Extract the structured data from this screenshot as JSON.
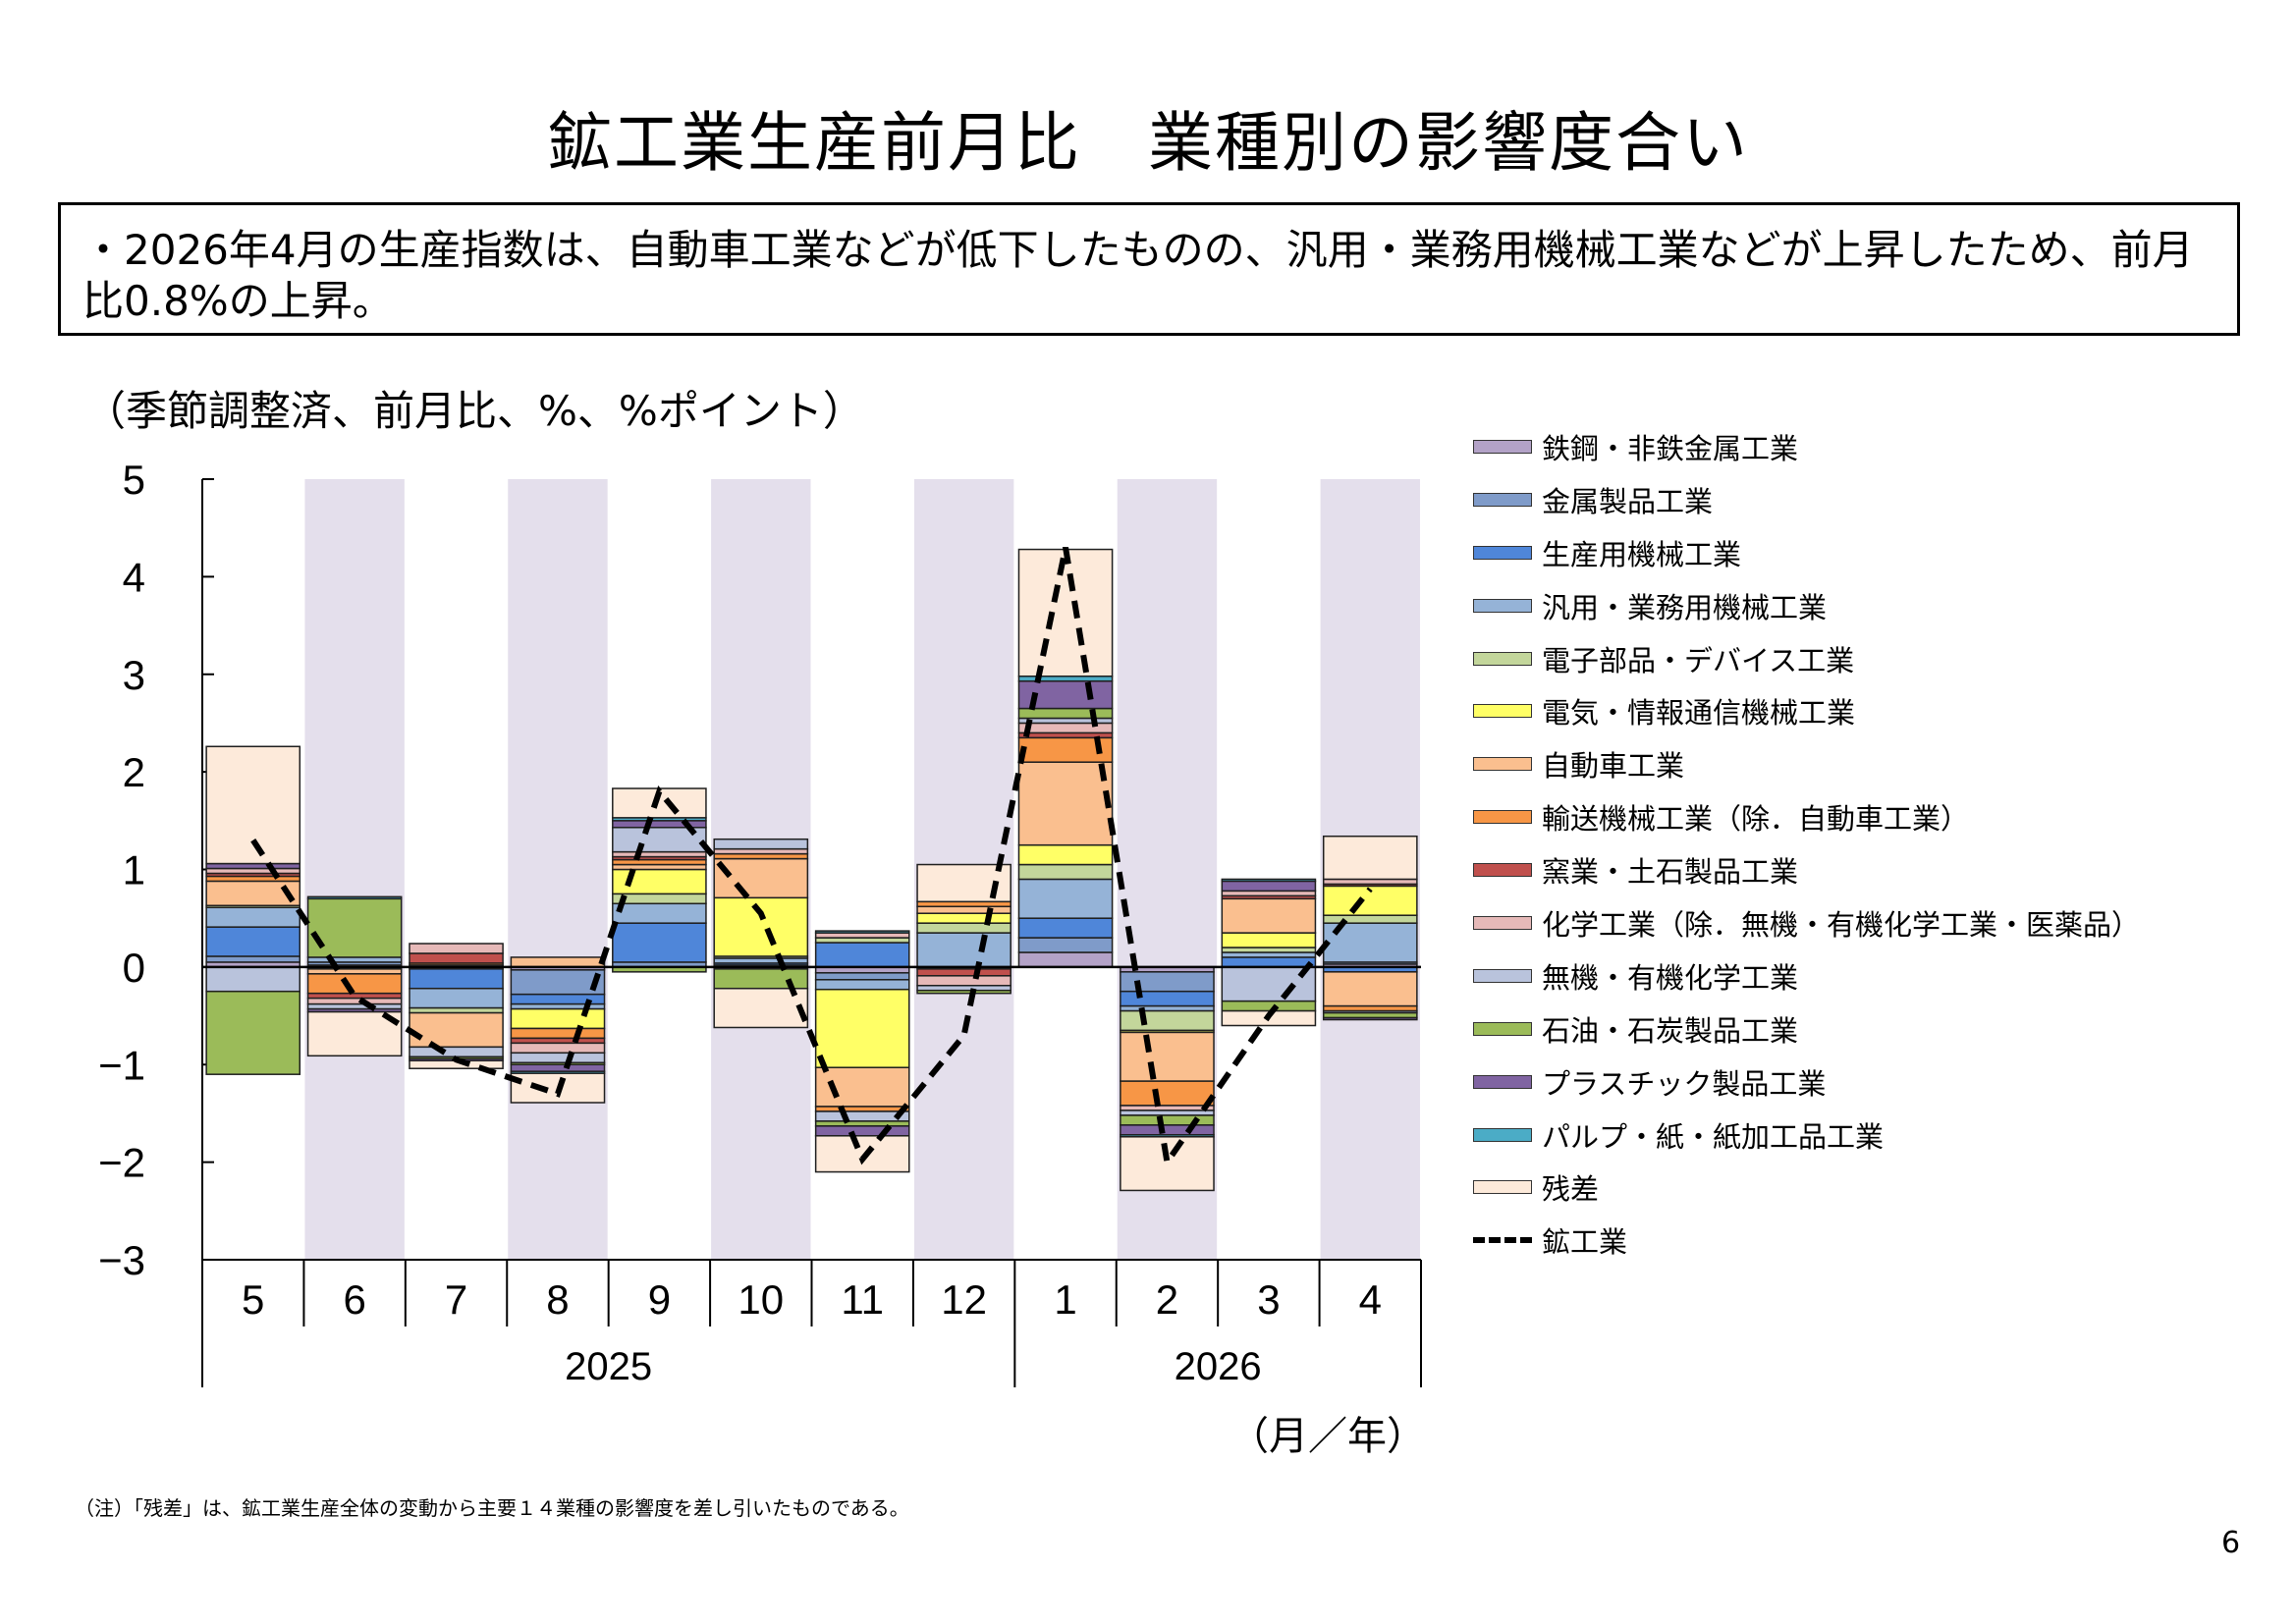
{
  "page": {
    "title": "鉱工業生産前月比　業種別の影響度合い",
    "summary": "・2026年4月の生産指数は、自動車工業などが低下したものの、汎用・業務用機械工業などが上昇したため、前月比0.8%の上昇。",
    "unit_label": "（季節調整済、前月比、%、%ポイント）",
    "x_unit": "（月／年）",
    "note": "（注）「残差」は、鉱工業生産全体の変動から主要１４業種の影響度を差し引いたものである。",
    "page_number": "6"
  },
  "chart_data": {
    "type": "bar",
    "stacked": true,
    "categories": [
      "5",
      "6",
      "7",
      "8",
      "9",
      "10",
      "11",
      "12",
      "1",
      "2",
      "3",
      "4"
    ],
    "year_groups": [
      {
        "label": "2025",
        "months": 8
      },
      {
        "label": "2026",
        "months": 4
      }
    ],
    "ylim": [
      -3,
      5
    ],
    "yticks": [
      "5",
      "4",
      "3",
      "2",
      "1",
      "0",
      "−1",
      "−2",
      "−3"
    ],
    "series": [
      {
        "name": "鉄鋼・非鉄金属工業",
        "color": "#B3A2C7",
        "values": [
          0.05,
          0.02,
          0.02,
          -0.03,
          0.0,
          -0.02,
          -0.06,
          0.0,
          0.15,
          -0.05,
          0.0,
          0.03
        ]
      },
      {
        "name": "金属製品工業",
        "color": "#7F9BC9",
        "values": [
          0.06,
          0.03,
          -0.02,
          -0.25,
          0.05,
          0.02,
          -0.07,
          -0.02,
          0.15,
          -0.2,
          0.0,
          0.02
        ]
      },
      {
        "name": "生産用機械工業",
        "color": "#4F86D9",
        "values": [
          0.3,
          -0.02,
          -0.2,
          -0.1,
          0.4,
          0.02,
          0.25,
          0.0,
          0.2,
          -0.15,
          0.1,
          -0.05
        ]
      },
      {
        "name": "汎用・業務用機械工業",
        "color": "#95B3D7",
        "values": [
          0.2,
          0.05,
          -0.2,
          -0.05,
          0.2,
          0.05,
          -0.1,
          0.35,
          0.4,
          -0.05,
          0.05,
          0.4
        ]
      },
      {
        "name": "電子部品・デバイス工業",
        "color": "#C3D69B",
        "values": [
          0.02,
          0.0,
          -0.05,
          0.0,
          0.1,
          0.02,
          0.05,
          0.1,
          0.15,
          -0.2,
          0.05,
          0.08
        ]
      },
      {
        "name": "電気・情報通信機械工業",
        "color": "#FFFF66",
        "values": [
          0.0,
          0.0,
          0.0,
          -0.2,
          0.25,
          0.6,
          -0.8,
          0.1,
          0.2,
          -0.02,
          0.15,
          0.3
        ]
      },
      {
        "name": "自動車工業",
        "color": "#FABF8F",
        "values": [
          0.25,
          -0.05,
          -0.35,
          0.1,
          0.05,
          0.4,
          -0.4,
          0.07,
          0.85,
          -0.5,
          0.35,
          -0.35
        ]
      },
      {
        "name": "輸送機械工業（除．自動車工業）",
        "color": "#F79646",
        "values": [
          0.05,
          -0.2,
          0.02,
          -0.1,
          0.05,
          0.05,
          -0.05,
          0.05,
          0.25,
          -0.25,
          0.0,
          -0.05
        ]
      },
      {
        "name": "窯業・土石製品工業",
        "color": "#C0504D",
        "values": [
          0.03,
          -0.05,
          0.1,
          -0.05,
          0.03,
          0.0,
          0.0,
          -0.07,
          0.05,
          0.0,
          0.03,
          0.02
        ]
      },
      {
        "name": "化学工業（除．無機・有機化学工業・医薬品）",
        "color": "#E6B9B8",
        "values": [
          0.05,
          -0.06,
          0.1,
          -0.1,
          0.05,
          0.05,
          0.05,
          -0.1,
          0.1,
          -0.05,
          0.05,
          0.05
        ]
      },
      {
        "name": "無機・有機化学工業",
        "color": "#B9C3DC",
        "values": [
          -0.25,
          -0.05,
          -0.1,
          -0.1,
          0.25,
          0.1,
          -0.1,
          -0.05,
          0.05,
          -0.05,
          -0.35,
          -0.02
        ]
      },
      {
        "name": "石油・石炭製品工業",
        "color": "#9BBB59",
        "values": [
          -0.85,
          0.6,
          -0.02,
          -0.02,
          -0.05,
          -0.2,
          -0.05,
          -0.03,
          0.1,
          -0.1,
          -0.1,
          -0.05
        ]
      },
      {
        "name": "プラスチック製品工業",
        "color": "#8064A2",
        "values": [
          0.05,
          -0.03,
          -0.02,
          -0.07,
          0.07,
          0.0,
          -0.1,
          0.0,
          0.28,
          -0.1,
          0.1,
          -0.02
        ]
      },
      {
        "name": "パルプ・紙・紙加工品工業",
        "color": "#4BACC6",
        "values": [
          0.0,
          0.02,
          0.0,
          -0.02,
          0.03,
          0.0,
          0.02,
          0.0,
          0.05,
          -0.02,
          0.02,
          0.0
        ]
      },
      {
        "name": "残差",
        "color": "#FDEADA",
        "values": [
          1.2,
          -0.45,
          -0.08,
          -0.3,
          0.3,
          -0.4,
          -0.37,
          0.38,
          1.3,
          -0.55,
          -0.15,
          0.44
        ]
      }
    ],
    "line": {
      "name": "鉱工業",
      "values": [
        1.3,
        -0.3,
        -0.95,
        -1.3,
        1.8,
        0.55,
        -1.97,
        -0.7,
        4.3,
        -2.0,
        -0.5,
        0.8
      ]
    }
  }
}
